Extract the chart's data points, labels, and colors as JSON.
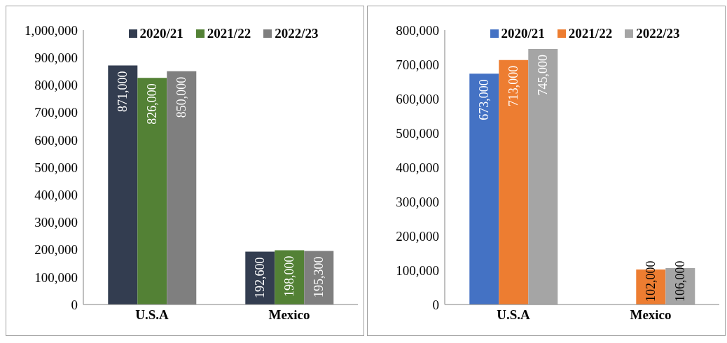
{
  "chart_data": [
    {
      "type": "bar",
      "categories": [
        "U.S.A",
        "Mexico"
      ],
      "series": [
        {
          "name": "2020/21",
          "color": "#333d50",
          "values": [
            871000,
            192600
          ],
          "value_labels": [
            "871,000",
            "192,600"
          ]
        },
        {
          "name": "2021/22",
          "color": "#538135",
          "values": [
            826000,
            198000
          ],
          "value_labels": [
            "826,000",
            "198,000"
          ]
        },
        {
          "name": "2022/23",
          "color": "#7f7f7f",
          "values": [
            850000,
            195300
          ],
          "value_labels": [
            "850,000",
            "195,300"
          ]
        }
      ],
      "ylim": [
        0,
        1000000
      ],
      "yticks": [
        0,
        {
          "value": 100000,
          "label": "100,000"
        },
        {
          "value": 200000,
          "label": "200,000"
        },
        {
          "value": 300000,
          "label": "300,000"
        },
        {
          "value": 400000,
          "label": "400,000"
        },
        {
          "value": 500000,
          "label": "500,000"
        },
        {
          "value": 600000,
          "label": "600,000"
        },
        {
          "value": 700000,
          "label": "700,000"
        },
        {
          "value": 800000,
          "label": "800,000"
        },
        {
          "value": 900000,
          "label": "900,000"
        },
        {
          "value": 1000000,
          "label": "1,000,000"
        }
      ],
      "legend": "top"
    },
    {
      "type": "bar",
      "categories": [
        "U.S.A",
        "Mexico"
      ],
      "series": [
        {
          "name": "2020/21",
          "color": "#4472c4",
          "values": [
            673000,
            null
          ],
          "value_labels": [
            "673,000",
            null
          ]
        },
        {
          "name": "2021/22",
          "color": "#ed7d31",
          "values": [
            713000,
            102000
          ],
          "value_labels": [
            "713,000",
            "102,000"
          ]
        },
        {
          "name": "2022/23",
          "color": "#a5a5a5",
          "values": [
            745000,
            106000
          ],
          "value_labels": [
            "745,000",
            "106,000"
          ]
        }
      ],
      "ylim": [
        0,
        800000
      ],
      "yticks": [
        0,
        {
          "value": 100000,
          "label": "100,000"
        },
        {
          "value": 200000,
          "label": "200,000"
        },
        {
          "value": 300000,
          "label": "300,000"
        },
        {
          "value": 400000,
          "label": "400,000"
        },
        {
          "value": 500000,
          "label": "500,000"
        },
        {
          "value": 600000,
          "label": "600,000"
        },
        {
          "value": 700000,
          "label": "700,000"
        },
        {
          "value": 800000,
          "label": "800,000"
        }
      ],
      "legend": "top"
    }
  ]
}
